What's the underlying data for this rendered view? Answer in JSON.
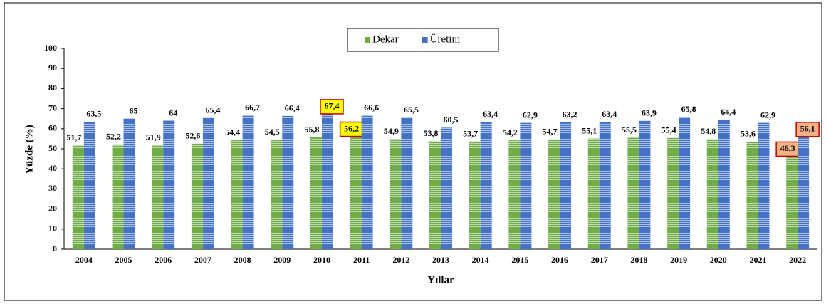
{
  "chart_data": {
    "type": "bar",
    "categories": [
      "2004",
      "2005",
      "2006",
      "2007",
      "2008",
      "2009",
      "2010",
      "2011",
      "2012",
      "2013",
      "2014",
      "2015",
      "2016",
      "2017",
      "2018",
      "2019",
      "2020",
      "2021",
      "2022"
    ],
    "series": [
      {
        "name": "Dekar",
        "color": "#70ad47",
        "values": [
          51.7,
          52.2,
          51.9,
          52.6,
          54.4,
          54.5,
          55.8,
          56.2,
          54.9,
          53.8,
          53.7,
          54.2,
          54.7,
          55.1,
          55.5,
          55.4,
          54.8,
          53.6,
          46.3
        ],
        "value_labels": [
          "51,7",
          "52,2",
          "51,9",
          "52,6",
          "54,4",
          "54,5",
          "55,8",
          "56,2",
          "54,9",
          "53,8",
          "53,7",
          "54,2",
          "54,7",
          "55,1",
          "55,5",
          "55,4",
          "54,8",
          "53,6",
          "46,3"
        ],
        "label_boxes": [
          {
            "index": 7,
            "fill": "#ffff00"
          },
          {
            "index": 18,
            "fill": "#f4b183"
          }
        ]
      },
      {
        "name": "Üretim",
        "color": "#4472c4",
        "values": [
          63.5,
          65,
          64,
          65.4,
          66.7,
          66.4,
          67.4,
          66.6,
          65.5,
          60.5,
          63.4,
          62.9,
          63.2,
          63.4,
          63.9,
          65.8,
          64.4,
          62.9,
          56.1
        ],
        "value_labels": [
          "63,5",
          "65",
          "64",
          "65,4",
          "66,7",
          "66,4",
          "67,4",
          "66,6",
          "65,5",
          "60,5",
          "63,4",
          "62,9",
          "63,2",
          "63,4",
          "63,9",
          "65,8",
          "64,4",
          "62,9",
          "56,1"
        ],
        "label_boxes": [
          {
            "index": 6,
            "fill": "#ffff00"
          },
          {
            "index": 18,
            "fill": "#f4b183"
          }
        ]
      }
    ],
    "x_label": "Yıllar",
    "y_label": "Yüzde (%)",
    "ylim": [
      0,
      100
    ],
    "yticks": [
      0,
      10,
      20,
      30,
      40,
      50,
      60,
      70,
      80,
      90,
      100
    ],
    "legend": "top",
    "grid": false
  }
}
